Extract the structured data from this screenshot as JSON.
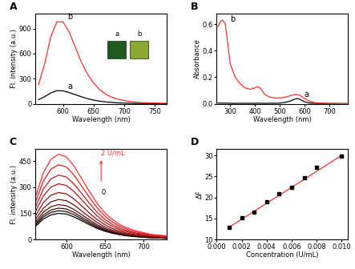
{
  "chart_data": [
    {
      "panel_label": "A",
      "type": "line",
      "x_label": "Wavelength (nm)",
      "y_label": "Fl. intensity (a.u.)",
      "x": [
        560,
        570,
        580,
        590,
        600,
        610,
        620,
        630,
        640,
        650,
        660,
        670,
        680,
        690,
        700,
        710,
        720,
        730,
        740,
        750,
        760,
        770
      ],
      "series": [
        {
          "name": "a",
          "color": "#000000",
          "values": [
            50,
            85,
            130,
            158,
            155,
            135,
            110,
            85,
            62,
            45,
            32,
            23,
            17,
            12,
            9,
            7,
            5,
            4,
            3,
            3,
            2,
            2
          ]
        },
        {
          "name": "b",
          "color": "#ff3030",
          "values": [
            230,
            480,
            800,
            980,
            980,
            860,
            680,
            500,
            360,
            250,
            170,
            115,
            80,
            55,
            40,
            28,
            20,
            15,
            12,
            10,
            8,
            7
          ]
        }
      ],
      "inset_labels": [
        "a",
        "b"
      ],
      "xlim": [
        555,
        770
      ],
      "xticks": [
        600,
        650,
        700,
        750
      ],
      "ylim": [
        0,
        1080
      ],
      "yticks": [
        0,
        300,
        600,
        900
      ]
    },
    {
      "panel_label": "B",
      "type": "line",
      "x_label": "Wavelength (nm)",
      "y_label": "Absorbance",
      "x": [
        250,
        260,
        270,
        280,
        290,
        300,
        320,
        340,
        360,
        380,
        400,
        410,
        420,
        440,
        460,
        480,
        500,
        520,
        540,
        560,
        570,
        580,
        600,
        620,
        640,
        660,
        700,
        740,
        770
      ],
      "series": [
        {
          "name": "a",
          "color": "#000000",
          "values": [
            0.006,
            0.006,
            0.005,
            0.005,
            0.005,
            0.004,
            0.004,
            0.004,
            0.004,
            0.004,
            0.004,
            0.005,
            0.004,
            0.004,
            0.004,
            0.004,
            0.006,
            0.01,
            0.02,
            0.035,
            0.04,
            0.035,
            0.015,
            0.006,
            0.004,
            0.003,
            0.003,
            0.002,
            0.002
          ]
        },
        {
          "name": "b",
          "color": "#ff3030",
          "values": [
            0.58,
            0.62,
            0.63,
            0.6,
            0.45,
            0.3,
            0.2,
            0.15,
            0.12,
            0.11,
            0.12,
            0.13,
            0.12,
            0.07,
            0.05,
            0.045,
            0.045,
            0.05,
            0.06,
            0.07,
            0.07,
            0.065,
            0.04,
            0.02,
            0.01,
            0.005,
            0.003,
            0.002,
            0.002
          ]
        }
      ],
      "xlim": [
        245,
        775
      ],
      "xticks": [
        300,
        400,
        500,
        600,
        700
      ],
      "ylim": [
        0,
        0.68
      ],
      "yticks": [
        {
          "value": 0.0,
          "label": "0.0"
        },
        0.2,
        0.4,
        0.6
      ]
    },
    {
      "panel_label": "C",
      "type": "line",
      "x_label": "Wavelength (nm)",
      "y_label": "Fl. intensity (a.u.)",
      "annotations": [
        "2 U/mL",
        "0"
      ],
      "x": [
        560,
        570,
        580,
        590,
        600,
        610,
        620,
        630,
        640,
        650,
        660,
        670,
        680,
        690,
        700,
        710,
        720,
        730
      ],
      "series": [
        {
          "color": "#000000",
          "values": [
            75,
            117,
            141,
            150,
            146,
            129,
            107,
            84,
            63,
            47,
            35,
            26,
            20,
            15,
            12,
            9,
            8,
            6
          ]
        },
        {
          "color": "#1c0404",
          "values": [
            83,
            129,
            155,
            165,
            160,
            142,
            117,
            92,
            69,
            51,
            38,
            28,
            21,
            17,
            13,
            10,
            8,
            7
          ]
        },
        {
          "color": "#380808",
          "values": [
            90,
            140,
            169,
            180,
            175,
            155,
            128,
            101,
            76,
            56,
            41,
            31,
            23,
            18,
            14,
            11,
            9,
            7
          ]
        },
        {
          "color": "#550c0c",
          "values": [
            100,
            156,
            188,
            200,
            194,
            172,
            142,
            112,
            84,
            62,
            46,
            34,
            26,
            20,
            16,
            12,
            10,
            8
          ]
        },
        {
          "color": "#711010",
          "values": [
            115,
            179,
            216,
            230,
            223,
            198,
            163,
            129,
            97,
            71,
            53,
            39,
            30,
            23,
            18,
            14,
            12,
            9
          ]
        },
        {
          "color": "#8d1414",
          "values": [
            135,
            211,
            254,
            270,
            262,
            232,
            192,
            151,
            113,
            84,
            62,
            46,
            35,
            27,
            22,
            16,
            14,
            11
          ]
        },
        {
          "color": "#aa1818",
          "values": [
            160,
            250,
            301,
            320,
            310,
            275,
            227,
            179,
            134,
            99,
            74,
            54,
            42,
            32,
            26,
            19,
            16,
            13
          ]
        },
        {
          "color": "#c61c1c",
          "values": [
            185,
            289,
            348,
            370,
            359,
            318,
            263,
            207,
            155,
            115,
            85,
            63,
            48,
            37,
            30,
            22,
            19,
            15
          ]
        },
        {
          "color": "#e22020",
          "values": [
            215,
            335,
            404,
            430,
            417,
            370,
            305,
            241,
            181,
            133,
            99,
            73,
            56,
            43,
            34,
            26,
            22,
            17
          ]
        },
        {
          "color": "#ff3030",
          "values": [
            245,
            382,
            461,
            490,
            475,
            421,
            348,
            274,
            206,
            152,
            113,
            83,
            64,
            49,
            39,
            29,
            25,
            20
          ]
        }
      ],
      "xlim": [
        560,
        730
      ],
      "xticks": [
        600,
        650,
        700
      ],
      "ylim": [
        0,
        520
      ],
      "yticks": [
        0,
        150,
        300,
        450
      ]
    },
    {
      "panel_label": "D",
      "type": "scatter",
      "x_label": "Concentration (U/mL)",
      "y_label": "ΔF",
      "series": [
        {
          "type": "scatter",
          "color": "#000000",
          "marker": "square",
          "x": [
            0.001,
            0.002,
            0.003,
            0.004,
            0.005,
            0.006,
            0.007,
            0.008,
            0.01
          ],
          "values": [
            12.8,
            15.2,
            16.5,
            19.0,
            20.8,
            22.3,
            24.7,
            27.1,
            29.8
          ]
        },
        {
          "type": "line",
          "color": "#ff3030",
          "x": [
            0.001,
            0.01
          ],
          "values": [
            12.9,
            30.0
          ]
        }
      ],
      "xlim": [
        0,
        0.0105
      ],
      "xticks": [
        {
          "value": 0.0,
          "label": "0.000"
        },
        {
          "value": 0.002,
          "label": "0.002"
        },
        {
          "value": 0.004,
          "label": "0.004"
        },
        {
          "value": 0.006,
          "label": "0.006"
        },
        {
          "value": 0.008,
          "label": "0.008"
        },
        {
          "value": 0.01,
          "label": "0.010"
        }
      ],
      "ylim": [
        10,
        31.5
      ],
      "yticks": [
        10,
        15,
        20,
        25,
        30
      ]
    }
  ]
}
